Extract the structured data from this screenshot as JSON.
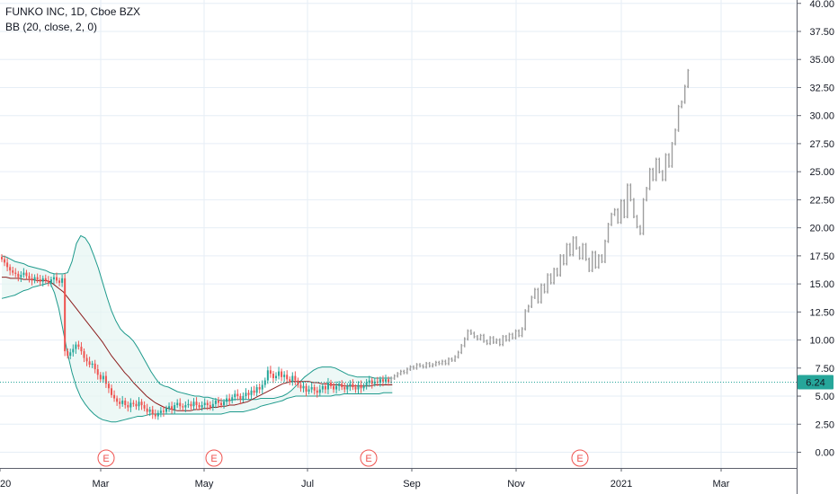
{
  "legend": {
    "symbol_line": "FUNKO INC, 1D, Cboe BZX",
    "indicator_line": "BB (20, close, 2, 0)"
  },
  "price_label": "6.24",
  "colors": {
    "up": "#26a69a",
    "down": "#ef5350",
    "projection": "#9e9e9e",
    "bb_band": "#1e9a8c",
    "bb_basis": "#8b1d1d",
    "bb_fill": "#e6f5f2",
    "grid": "#e6eef6",
    "price_line": "#26a69a",
    "earnings": "#ef5350"
  },
  "chart_data": {
    "type": "candlestick",
    "title": "FUNKO INC, 1D, Cboe BZX",
    "indicator": "BB (20, close, 2, 0)",
    "y_ticks": [
      "40.00",
      "37.50",
      "35.00",
      "32.50",
      "30.00",
      "27.50",
      "25.00",
      "22.50",
      "20.00",
      "17.50",
      "15.00",
      "12.50",
      "10.00",
      "7.50",
      "5.00",
      "2.50",
      "0.00"
    ],
    "ylim": [
      -1.4,
      40.3
    ],
    "x_ticks": [
      "20",
      "Mar",
      "May",
      "Jul",
      "Sep",
      "Nov",
      "2021",
      "Mar"
    ],
    "current_price": 6.24,
    "earnings_markers": [
      "E",
      "E",
      "E",
      "E"
    ],
    "actual_closes": [
      17.2,
      16.9,
      16.5,
      16.2,
      16.0,
      15.9,
      15.6,
      15.8,
      16.0,
      15.7,
      15.5,
      15.3,
      15.6,
      15.4,
      15.2,
      15.5,
      15.3,
      15.1,
      15.4,
      15.6,
      15.3,
      15.1,
      15.5,
      9.0,
      8.6,
      8.9,
      9.2,
      9.6,
      9.4,
      9.0,
      8.4,
      8.1,
      7.8,
      7.9,
      7.4,
      6.9,
      6.5,
      6.8,
      6.1,
      5.7,
      5.1,
      4.8,
      4.5,
      4.3,
      4.6,
      4.2,
      4.0,
      4.4,
      4.3,
      4.1,
      4.5,
      4.2,
      3.9,
      3.6,
      3.8,
      3.4,
      3.2,
      3.5,
      3.7,
      3.6,
      3.9,
      4.1,
      3.8,
      4.2,
      4.4,
      4.1,
      4.0,
      4.2,
      4.3,
      4.1,
      4.5,
      4.2,
      4.0,
      4.2,
      4.4,
      4.2,
      4.0,
      4.3,
      4.6,
      4.4,
      4.2,
      4.5,
      4.8,
      4.6,
      4.9,
      5.2,
      5.0,
      4.7,
      5.0,
      5.3,
      5.1,
      5.5,
      5.3,
      5.8,
      5.6,
      6.0,
      6.4,
      7.3,
      7.0,
      6.6,
      6.8,
      7.2,
      6.7,
      6.9,
      6.5,
      6.3,
      6.8,
      6.4,
      6.0,
      5.7,
      5.9,
      5.4,
      5.6,
      5.8,
      5.5,
      5.3,
      5.6,
      5.9,
      5.6,
      6.2,
      5.9,
      5.6,
      5.9,
      6.1,
      5.8,
      5.6,
      5.9,
      6.1,
      5.8,
      5.6,
      6.0,
      5.7,
      5.9,
      6.2,
      6.4,
      6.1,
      6.3,
      6.2,
      6.5,
      6.3,
      6.5,
      6.24
    ],
    "bb_upper": [
      17.5,
      17.4,
      17.2,
      17.0,
      16.9,
      16.8,
      16.6,
      16.5,
      16.4,
      16.3,
      16.2,
      16.0,
      15.9,
      15.9,
      15.9,
      16.0,
      17.0,
      18.6,
      19.3,
      19.1,
      18.5,
      17.5,
      16.4,
      15.1,
      13.8,
      12.6,
      11.7,
      11.0,
      10.6,
      10.3,
      9.9,
      9.3,
      8.6,
      7.9,
      7.2,
      6.6,
      6.1,
      5.9,
      5.8,
      5.6,
      5.4,
      5.3,
      5.2,
      5.1,
      5.0,
      5.0,
      4.9,
      4.9,
      4.8,
      4.7,
      4.6,
      4.6,
      4.6,
      4.7,
      4.7,
      4.7,
      4.7,
      4.7,
      4.7,
      4.8,
      4.8,
      4.8,
      4.8,
      4.9,
      5.0,
      5.2,
      5.5,
      5.9,
      6.3,
      6.7,
      7.0,
      7.3,
      7.5,
      7.6,
      7.6,
      7.6,
      7.5,
      7.3,
      7.1,
      6.9,
      6.8,
      6.7,
      6.7,
      6.7,
      6.7,
      6.6,
      6.6,
      6.6,
      6.6,
      6.6
    ],
    "bb_basis": [
      15.6,
      15.6,
      15.5,
      15.5,
      15.5,
      15.4,
      15.4,
      15.4,
      15.3,
      15.3,
      15.3,
      15.2,
      14.9,
      14.6,
      14.3,
      13.8,
      13.3,
      12.8,
      12.3,
      11.8,
      11.3,
      10.8,
      10.3,
      9.8,
      9.2,
      8.6,
      8.1,
      7.6,
      7.1,
      6.7,
      6.2,
      5.8,
      5.4,
      5.0,
      4.7,
      4.4,
      4.2,
      4.0,
      3.9,
      3.8,
      3.7,
      3.7,
      3.7,
      3.7,
      3.8,
      3.8,
      3.9,
      3.9,
      4.0,
      4.0,
      4.1,
      4.1,
      4.2,
      4.2,
      4.3,
      4.4,
      4.5,
      4.7,
      4.9,
      5.1,
      5.3,
      5.5,
      5.7,
      5.9,
      6.1,
      6.2,
      6.3,
      6.3,
      6.3,
      6.3,
      6.3,
      6.2,
      6.2,
      6.1,
      6.1,
      6.0,
      6.0,
      6.0,
      5.9,
      5.9,
      5.9,
      5.9,
      5.9,
      5.9,
      5.9,
      6.0,
      6.0,
      6.0,
      6.0,
      6.0
    ],
    "bb_lower": [
      13.7,
      13.8,
      13.9,
      14.0,
      14.2,
      14.4,
      14.5,
      14.7,
      14.8,
      14.9,
      15.0,
      15.1,
      14.2,
      12.8,
      10.8,
      8.8,
      7.1,
      5.8,
      4.9,
      4.3,
      3.8,
      3.4,
      3.1,
      2.9,
      2.8,
      2.7,
      2.7,
      2.8,
      2.9,
      3.0,
      3.1,
      3.2,
      3.2,
      3.3,
      3.4,
      3.4,
      3.4,
      3.4,
      3.4,
      3.4,
      3.4,
      3.4,
      3.4,
      3.4,
      3.4,
      3.4,
      3.4,
      3.4,
      3.4,
      3.4,
      3.4,
      3.5,
      3.6,
      3.6,
      3.6,
      3.6,
      3.7,
      3.8,
      3.9,
      4.1,
      4.2,
      4.3,
      4.4,
      4.5,
      4.6,
      4.8,
      4.9,
      5.0,
      5.0,
      5.0,
      5.0,
      5.0,
      5.0,
      5.0,
      5.0,
      5.0,
      5.1,
      5.1,
      5.2,
      5.2,
      5.2,
      5.2,
      5.2,
      5.2,
      5.2,
      5.2,
      5.2,
      5.3,
      5.3,
      5.3
    ],
    "projection_closes": [
      6.6,
      6.8,
      7.0,
      7.2,
      7.1,
      7.4,
      7.6,
      7.5,
      7.8,
      7.7,
      7.6,
      7.9,
      7.7,
      7.8,
      8.0,
      7.9,
      8.1,
      7.9,
      8.3,
      8.2,
      8.5,
      8.9,
      9.5,
      10.1,
      10.8,
      10.6,
      10.3,
      10.1,
      10.4,
      9.9,
      9.7,
      10.2,
      9.8,
      10.0,
      9.6,
      10.3,
      10.0,
      10.5,
      10.2,
      10.8,
      10.4,
      11.0,
      12.6,
      13.0,
      13.8,
      14.5,
      13.4,
      14.9,
      14.3,
      15.8,
      15.1,
      16.3,
      15.8,
      17.5,
      16.8,
      18.5,
      17.6,
      19.1,
      18.2,
      17.3,
      18.5,
      17.2,
      16.2,
      17.8,
      16.5,
      17.5,
      17.0,
      18.8,
      20.3,
      21.2,
      21.6,
      20.5,
      22.4,
      21.0,
      23.8,
      22.5,
      21.0,
      20.1,
      19.5,
      22.5,
      23.5,
      25.2,
      24.3,
      26.1,
      25.0,
      24.3,
      26.5,
      25.5,
      27.5,
      28.7,
      30.8,
      31.2,
      32.6,
      34.0
    ]
  }
}
